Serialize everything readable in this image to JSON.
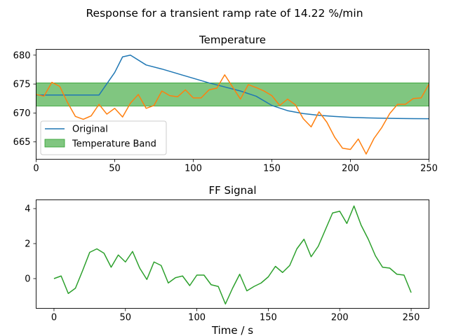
{
  "figure": {
    "suptitle": "Response for a transient ramp rate of 14.22 %/min"
  },
  "chart_data": [
    {
      "type": "line",
      "title": "Temperature",
      "xlabel": "",
      "ylabel": "",
      "xlim": [
        0,
        250
      ],
      "ylim": [
        662,
        681
      ],
      "x_ticks": [
        0,
        50,
        100,
        150,
        200,
        250
      ],
      "y_ticks": [
        665,
        670,
        675,
        680
      ],
      "grid": false,
      "legend_placement": "lower-left",
      "band": {
        "name": "Temperature Band",
        "y_low": 671.2,
        "y_high": 675.2,
        "color": "#2ca02c"
      },
      "series": [
        {
          "name": "Original",
          "color": "#1f77b4",
          "x": [
            0,
            10,
            20,
            30,
            40,
            50,
            55,
            60,
            70,
            80,
            90,
            100,
            110,
            120,
            130,
            140,
            150,
            160,
            170,
            180,
            190,
            200,
            210,
            220,
            230,
            240,
            250
          ],
          "y": [
            673.1,
            673.1,
            673.1,
            673.1,
            673.1,
            677,
            679.7,
            680,
            678.3,
            677.6,
            676.8,
            676,
            675.2,
            674.5,
            673.8,
            672.9,
            671.3,
            670.4,
            669.9,
            669.6,
            669.4,
            669.25,
            669.15,
            669.1,
            669.05,
            669.02,
            669.0
          ]
        },
        {
          "name": "",
          "color": "#ff7f0e",
          "x": [
            0,
            5,
            10,
            15,
            20,
            25,
            30,
            35,
            40,
            45,
            50,
            55,
            60,
            65,
            70,
            75,
            80,
            85,
            90,
            95,
            100,
            105,
            110,
            115,
            120,
            125,
            130,
            135,
            140,
            145,
            150,
            155,
            160,
            165,
            170,
            175,
            180,
            185,
            190,
            195,
            200,
            205,
            210,
            215,
            220,
            225,
            230,
            235,
            240,
            245,
            250
          ],
          "y": [
            673.2,
            672.9,
            675.3,
            674.6,
            671.8,
            669.4,
            668.9,
            669.5,
            671.5,
            669.8,
            670.8,
            669.3,
            671.7,
            673.2,
            670.8,
            671.3,
            673.8,
            673.0,
            672.8,
            674.0,
            672.6,
            672.6,
            674.0,
            674.3,
            676.6,
            674.5,
            672.4,
            674.9,
            674.4,
            673.8,
            673.0,
            671.3,
            672.4,
            671.4,
            669.0,
            667.6,
            670.2,
            668.4,
            665.8,
            663.9,
            663.7,
            665.5,
            662.9,
            665.6,
            667.5,
            669.9,
            671.5,
            671.5,
            672.5,
            672.6,
            675.0
          ]
        }
      ]
    },
    {
      "type": "line",
      "title": "FF Signal",
      "xlabel": "Time / s",
      "ylabel": "",
      "xlim": [
        -12.5,
        262.5
      ],
      "ylim": [
        -1.7,
        4.5
      ],
      "x_ticks": [
        0,
        50,
        100,
        150,
        200,
        250
      ],
      "y_ticks": [
        0,
        2,
        4
      ],
      "grid": false,
      "series": [
        {
          "name": "",
          "color": "#2ca02c",
          "x": [
            0,
            5,
            10,
            15,
            20,
            25,
            30,
            35,
            40,
            45,
            50,
            55,
            60,
            65,
            70,
            75,
            80,
            85,
            90,
            95,
            100,
            105,
            110,
            115,
            120,
            125,
            130,
            135,
            140,
            145,
            150,
            155,
            160,
            165,
            170,
            175,
            180,
            185,
            190,
            195,
            200,
            205,
            210,
            215,
            220,
            225,
            230,
            235,
            240,
            245,
            250
          ],
          "y": [
            0,
            0.15,
            -0.85,
            -0.55,
            0.45,
            1.5,
            1.7,
            1.45,
            0.65,
            1.35,
            0.95,
            1.55,
            0.6,
            -0.05,
            0.95,
            0.75,
            -0.25,
            0.05,
            0.15,
            -0.4,
            0.2,
            0.2,
            -0.35,
            -0.45,
            -1.45,
            -0.55,
            0.25,
            -0.7,
            -0.45,
            -0.25,
            0.1,
            0.7,
            0.35,
            0.75,
            1.7,
            2.25,
            1.25,
            1.85,
            2.8,
            3.75,
            3.85,
            3.15,
            4.15,
            3.05,
            2.25,
            1.3,
            0.65,
            0.6,
            0.25,
            0.2,
            -0.8
          ]
        }
      ]
    }
  ]
}
